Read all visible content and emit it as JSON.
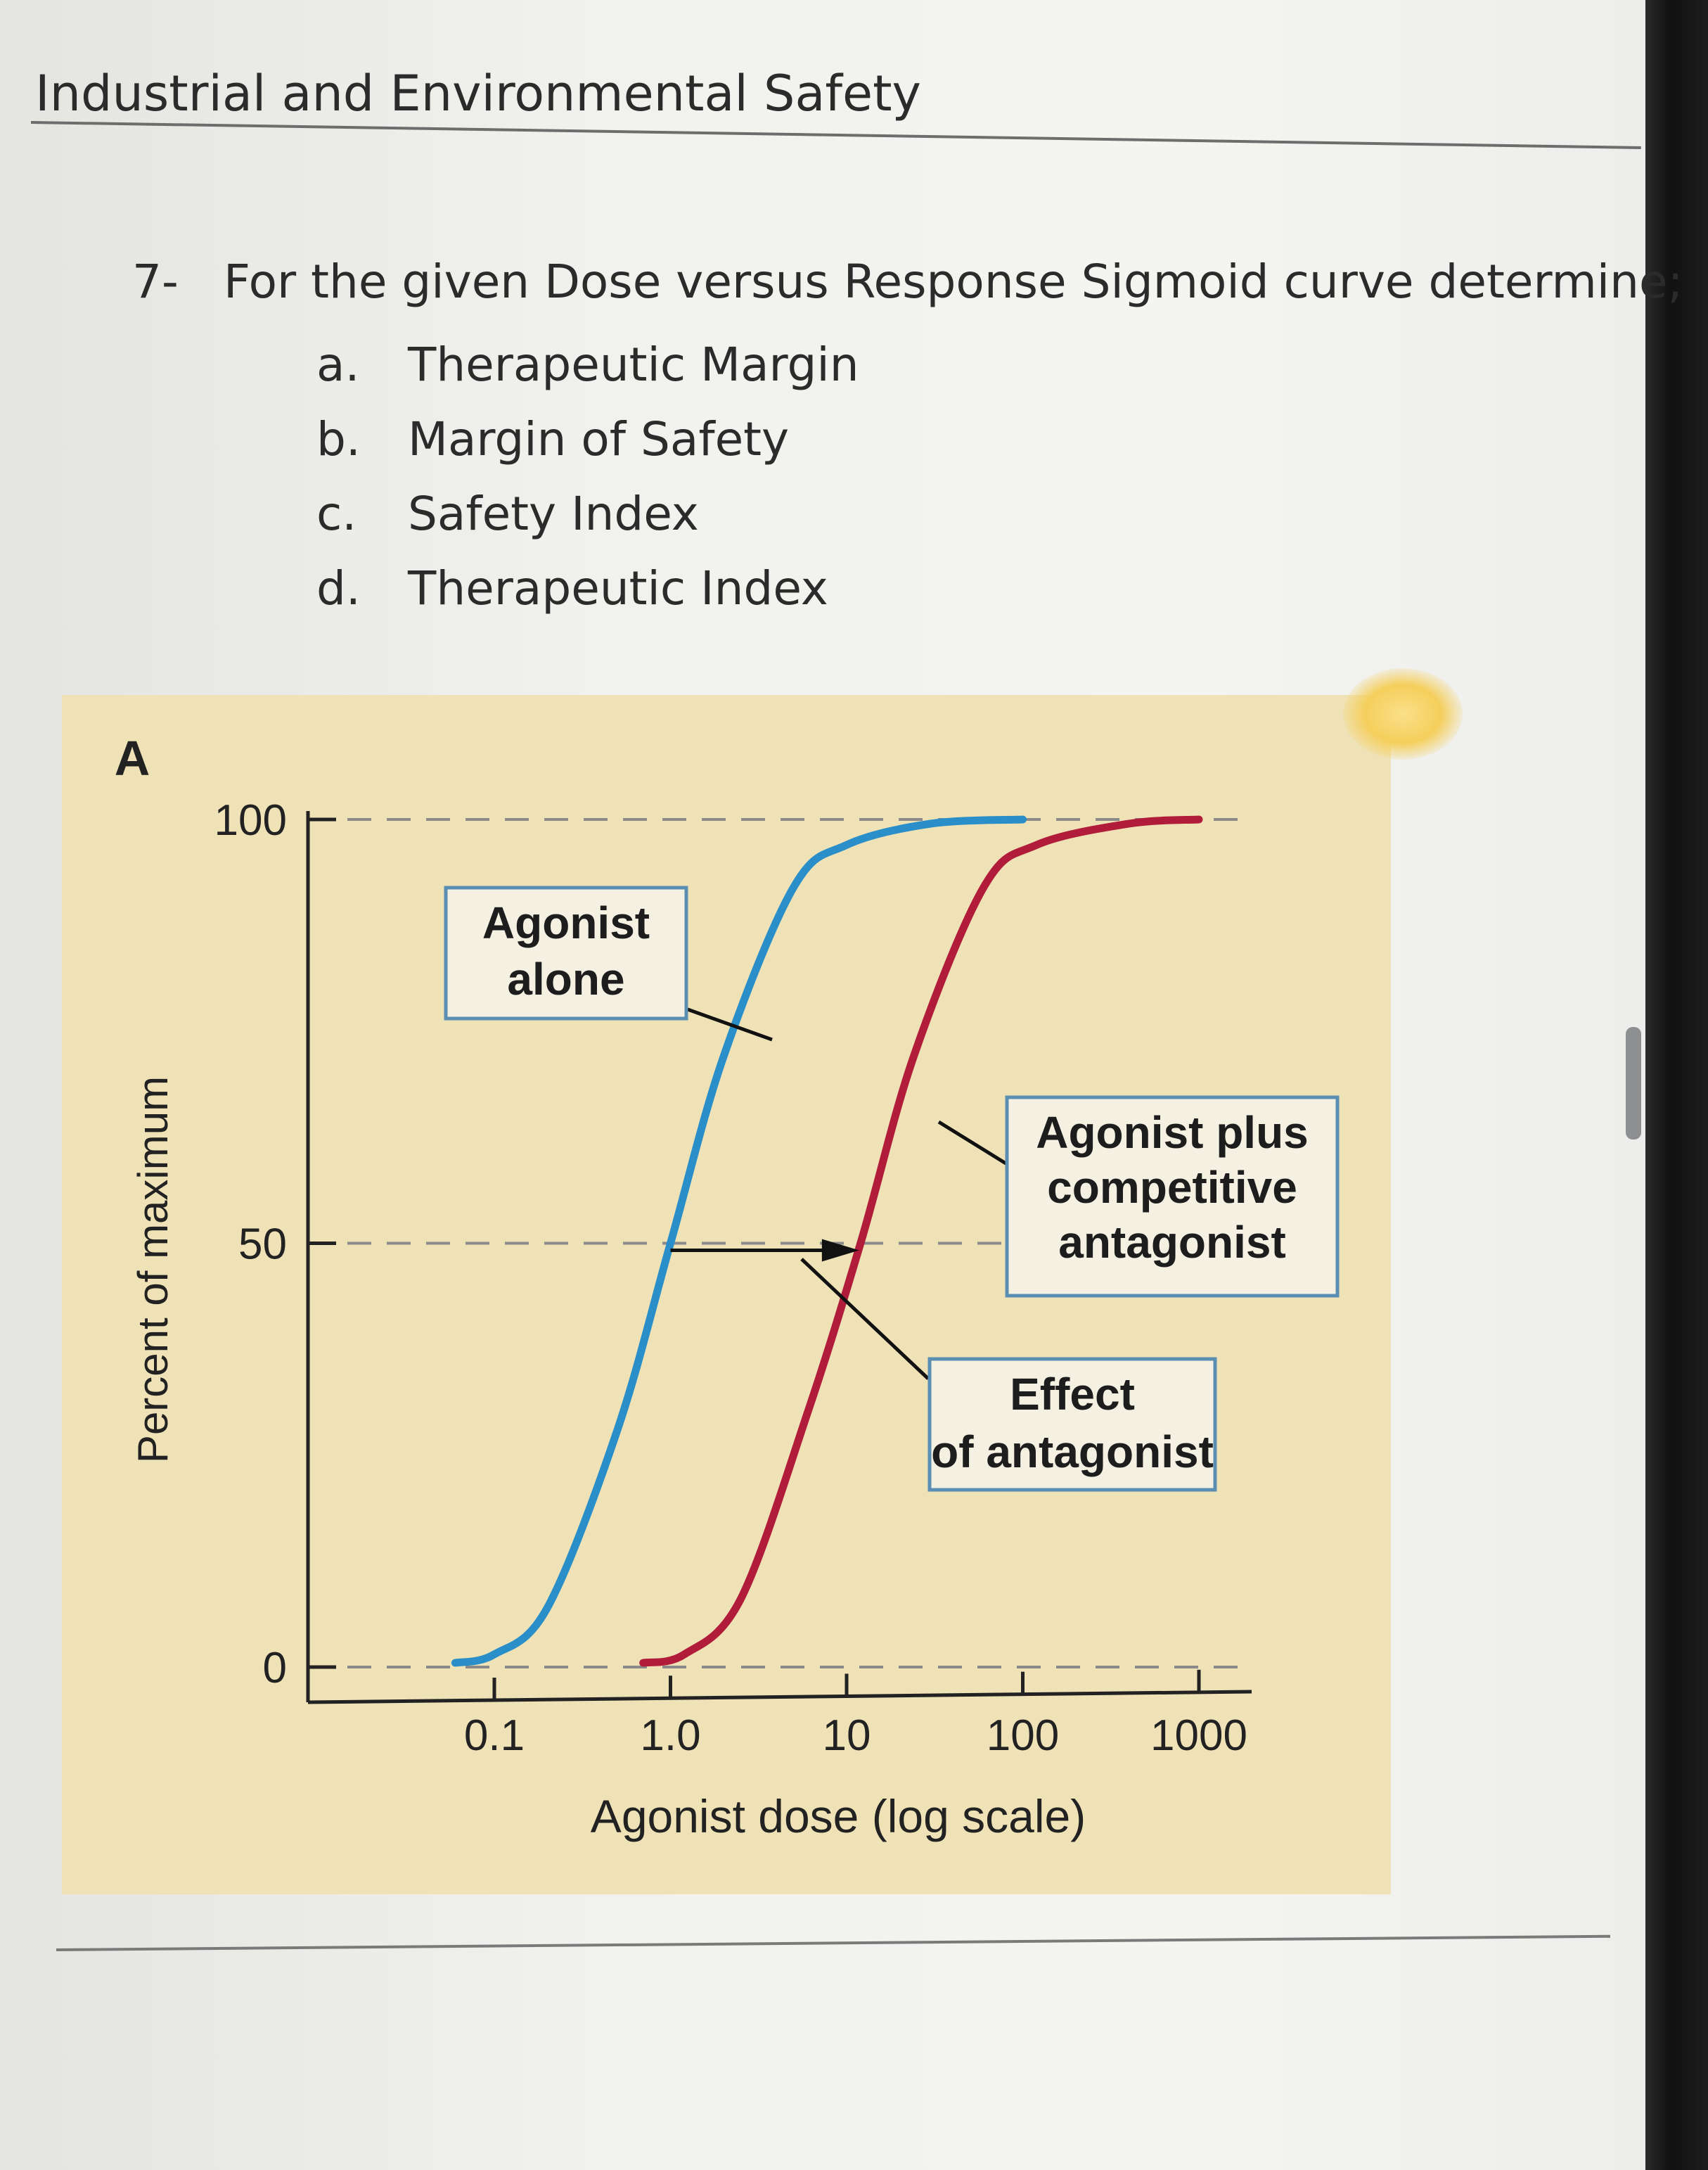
{
  "header": {
    "title": "Industrial and Environmental Safety"
  },
  "question": {
    "number": "7-",
    "text": "For the given Dose versus Response Sigmoid curve determine;",
    "options": [
      {
        "letter": "a.",
        "text": "Therapeutic Margin"
      },
      {
        "letter": "b.",
        "text": "Margin of Safety"
      },
      {
        "letter": "c.",
        "text": "Safety Index"
      },
      {
        "letter": "d.",
        "text": "Therapeutic Index"
      }
    ]
  },
  "chart_data": {
    "type": "line",
    "panel_label": "A",
    "xlabel": "Agonist dose (log scale)",
    "ylabel": "Percent of maximum",
    "x_scale": "log",
    "xlim": [
      0.05,
      1000
    ],
    "ylim": [
      0,
      100
    ],
    "x_ticks": [
      0.1,
      1.0,
      10,
      100,
      1000
    ],
    "x_tick_labels": [
      "0.1",
      "1.0",
      "10",
      "100",
      "1000"
    ],
    "y_ticks": [
      0,
      50,
      100
    ],
    "y_tick_labels": [
      "0",
      "50",
      "100"
    ],
    "grid": "dashed reference lines at 0, 50 and 100 percent",
    "series": [
      {
        "label": "Agonist alone",
        "color": "#2a8fc8",
        "points": [
          [
            0.06,
            0.5
          ],
          [
            0.1,
            1.5
          ],
          [
            0.2,
            7
          ],
          [
            0.5,
            28
          ],
          [
            1.0,
            50
          ],
          [
            2.0,
            72
          ],
          [
            5.0,
            92
          ],
          [
            10,
            97
          ],
          [
            30,
            99.5
          ],
          [
            100,
            100
          ]
        ]
      },
      {
        "label": "Agonist plus competitive antagonist",
        "color": "#b01c3a",
        "points": [
          [
            0.7,
            0.5
          ],
          [
            1.2,
            1.5
          ],
          [
            2.5,
            8
          ],
          [
            6,
            30
          ],
          [
            12,
            50
          ],
          [
            24,
            72
          ],
          [
            60,
            92
          ],
          [
            120,
            97
          ],
          [
            400,
            99.5
          ],
          [
            1000,
            100
          ]
        ]
      }
    ],
    "annotations": [
      {
        "text": "Agonist alone"
      },
      {
        "text": "Agonist plus competitive antagonist"
      },
      {
        "text": "Effect of antagonist"
      }
    ],
    "colors": {
      "panel_background": "#efe2b7",
      "axis": "#222222",
      "dash": "#8a8a8a"
    }
  }
}
